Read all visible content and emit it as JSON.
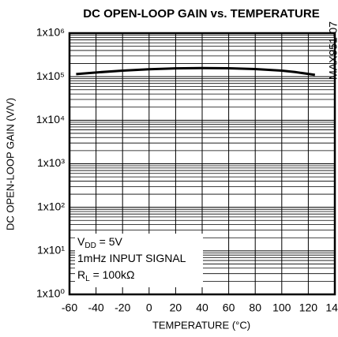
{
  "chart_data": {
    "type": "line",
    "title": "DC OPEN-LOOP GAIN vs. TEMPERATURE",
    "x_label": "TEMPERATURE (°C)",
    "y_label": "DC OPEN-LOOP GAIN (V/V)",
    "side_note": "MAX951-07",
    "annotations": [
      {
        "symbol": "V",
        "subscript": "DD",
        "text": " = 5V"
      },
      {
        "text": "1mHz INPUT SIGNAL"
      },
      {
        "symbol": "R",
        "subscript": "L",
        "text": " = 100kΩ"
      }
    ],
    "x": [
      -55,
      -40,
      -20,
      0,
      20,
      40,
      60,
      80,
      100,
      110,
      125
    ],
    "series": [
      {
        "name": null,
        "color": "#000000",
        "values": [
          115000,
          125000,
          138000,
          148000,
          155000,
          158000,
          156000,
          150000,
          138000,
          128000,
          110000
        ]
      }
    ],
    "xlim": [
      -60,
      140
    ],
    "xticks": [
      -60,
      -40,
      -20,
      0,
      20,
      40,
      60,
      80,
      100,
      120,
      140
    ],
    "ylim": [
      1,
      1000000
    ],
    "yticks": [
      {
        "value": 1,
        "label": "1x10⁰"
      },
      {
        "value": 10,
        "label": "1x10¹"
      },
      {
        "value": 100,
        "label": "1x10²"
      },
      {
        "value": 1000,
        "label": "1x10³"
      },
      {
        "value": 10000,
        "label": "1x10⁴"
      },
      {
        "value": 100000,
        "label": "1x10⁵"
      },
      {
        "value": 1000000,
        "label": "1x10⁶"
      }
    ],
    "log_y": true,
    "grid": true,
    "minor_grid": true
  }
}
